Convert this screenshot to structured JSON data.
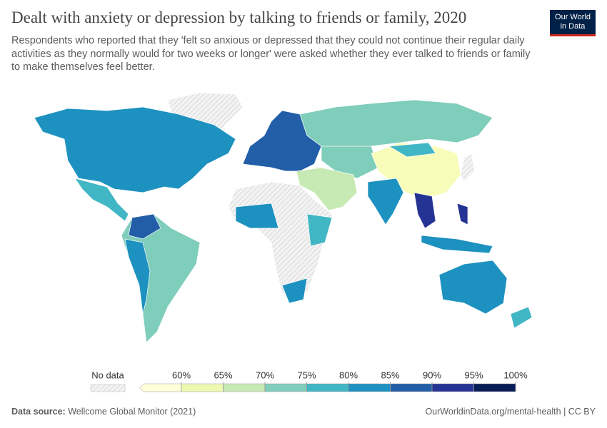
{
  "header": {
    "title": "Dealt with anxiety or depression by talking to friends or family, 2020",
    "subtitle": "Respondents who reported that they 'felt so anxious or depressed that they could not continue their regular daily activities as they normally would for two weeks or longer' were asked whether they ever talked to friends or family to make themselves feel better.",
    "logo": [
      "Our World",
      "in Data"
    ]
  },
  "legend": {
    "no_data": "No data",
    "ticks": [
      {
        "value": 60,
        "label": "60%"
      },
      {
        "value": 65,
        "label": "65%"
      },
      {
        "value": 70,
        "label": "70%"
      },
      {
        "value": 75,
        "label": "75%"
      },
      {
        "value": 80,
        "label": "80%"
      },
      {
        "value": 85,
        "label": "85%"
      },
      {
        "value": 90,
        "label": "90%"
      },
      {
        "value": 95,
        "label": "95%"
      },
      {
        "value": 100,
        "label": "100%"
      }
    ],
    "below_color": "#ffffd9",
    "colors": [
      "#edf8b1",
      "#c7e9b4",
      "#7fcdbb",
      "#41b6c4",
      "#1d91c0",
      "#225ea8",
      "#253494",
      "#081d58"
    ]
  },
  "footer": {
    "source_label": "Data source:",
    "source": "Wellcome Global Monitor (2021)",
    "url": "OurWorldinData.org/mental-health | CC BY"
  }
}
